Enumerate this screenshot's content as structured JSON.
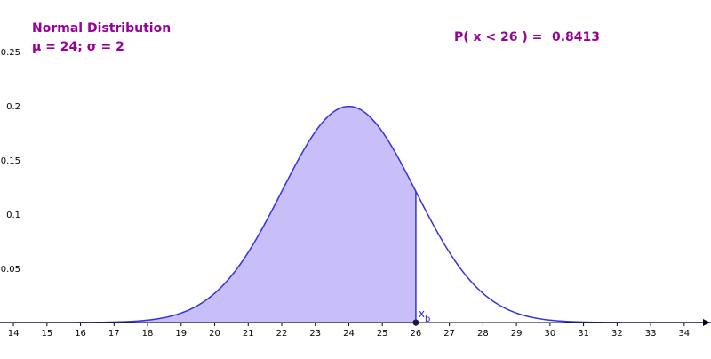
{
  "chart_data": {
    "type": "area",
    "title": "Normal Distribution",
    "subtitle": "μ = 24; σ = 2",
    "distribution": {
      "mean": 24,
      "sd": 2
    },
    "probability": {
      "label": "P( x < 26 ) =",
      "value": "0.8413"
    },
    "shade_upper_bound": 26,
    "marker": {
      "x": 26,
      "label": "x",
      "subscript": "b"
    },
    "xlim": [
      13.6,
      34.8
    ],
    "ylim": [
      0,
      0.25
    ],
    "x_ticks": [
      14,
      15,
      16,
      17,
      18,
      19,
      20,
      21,
      22,
      23,
      24,
      25,
      26,
      27,
      28,
      29,
      30,
      31,
      32,
      33,
      34
    ],
    "y_ticks": [
      0.05,
      0.1,
      0.15,
      0.2,
      0.25
    ],
    "y_tick_labels": [
      "0.05",
      "0.1",
      "0.15",
      "0.2",
      "0.25"
    ],
    "xlabel": "",
    "ylabel": "",
    "grid": false,
    "colors": {
      "curve": "#3333dd",
      "fill": "#c8bff8",
      "title": "#990099",
      "marker": "#1a1a44"
    }
  }
}
